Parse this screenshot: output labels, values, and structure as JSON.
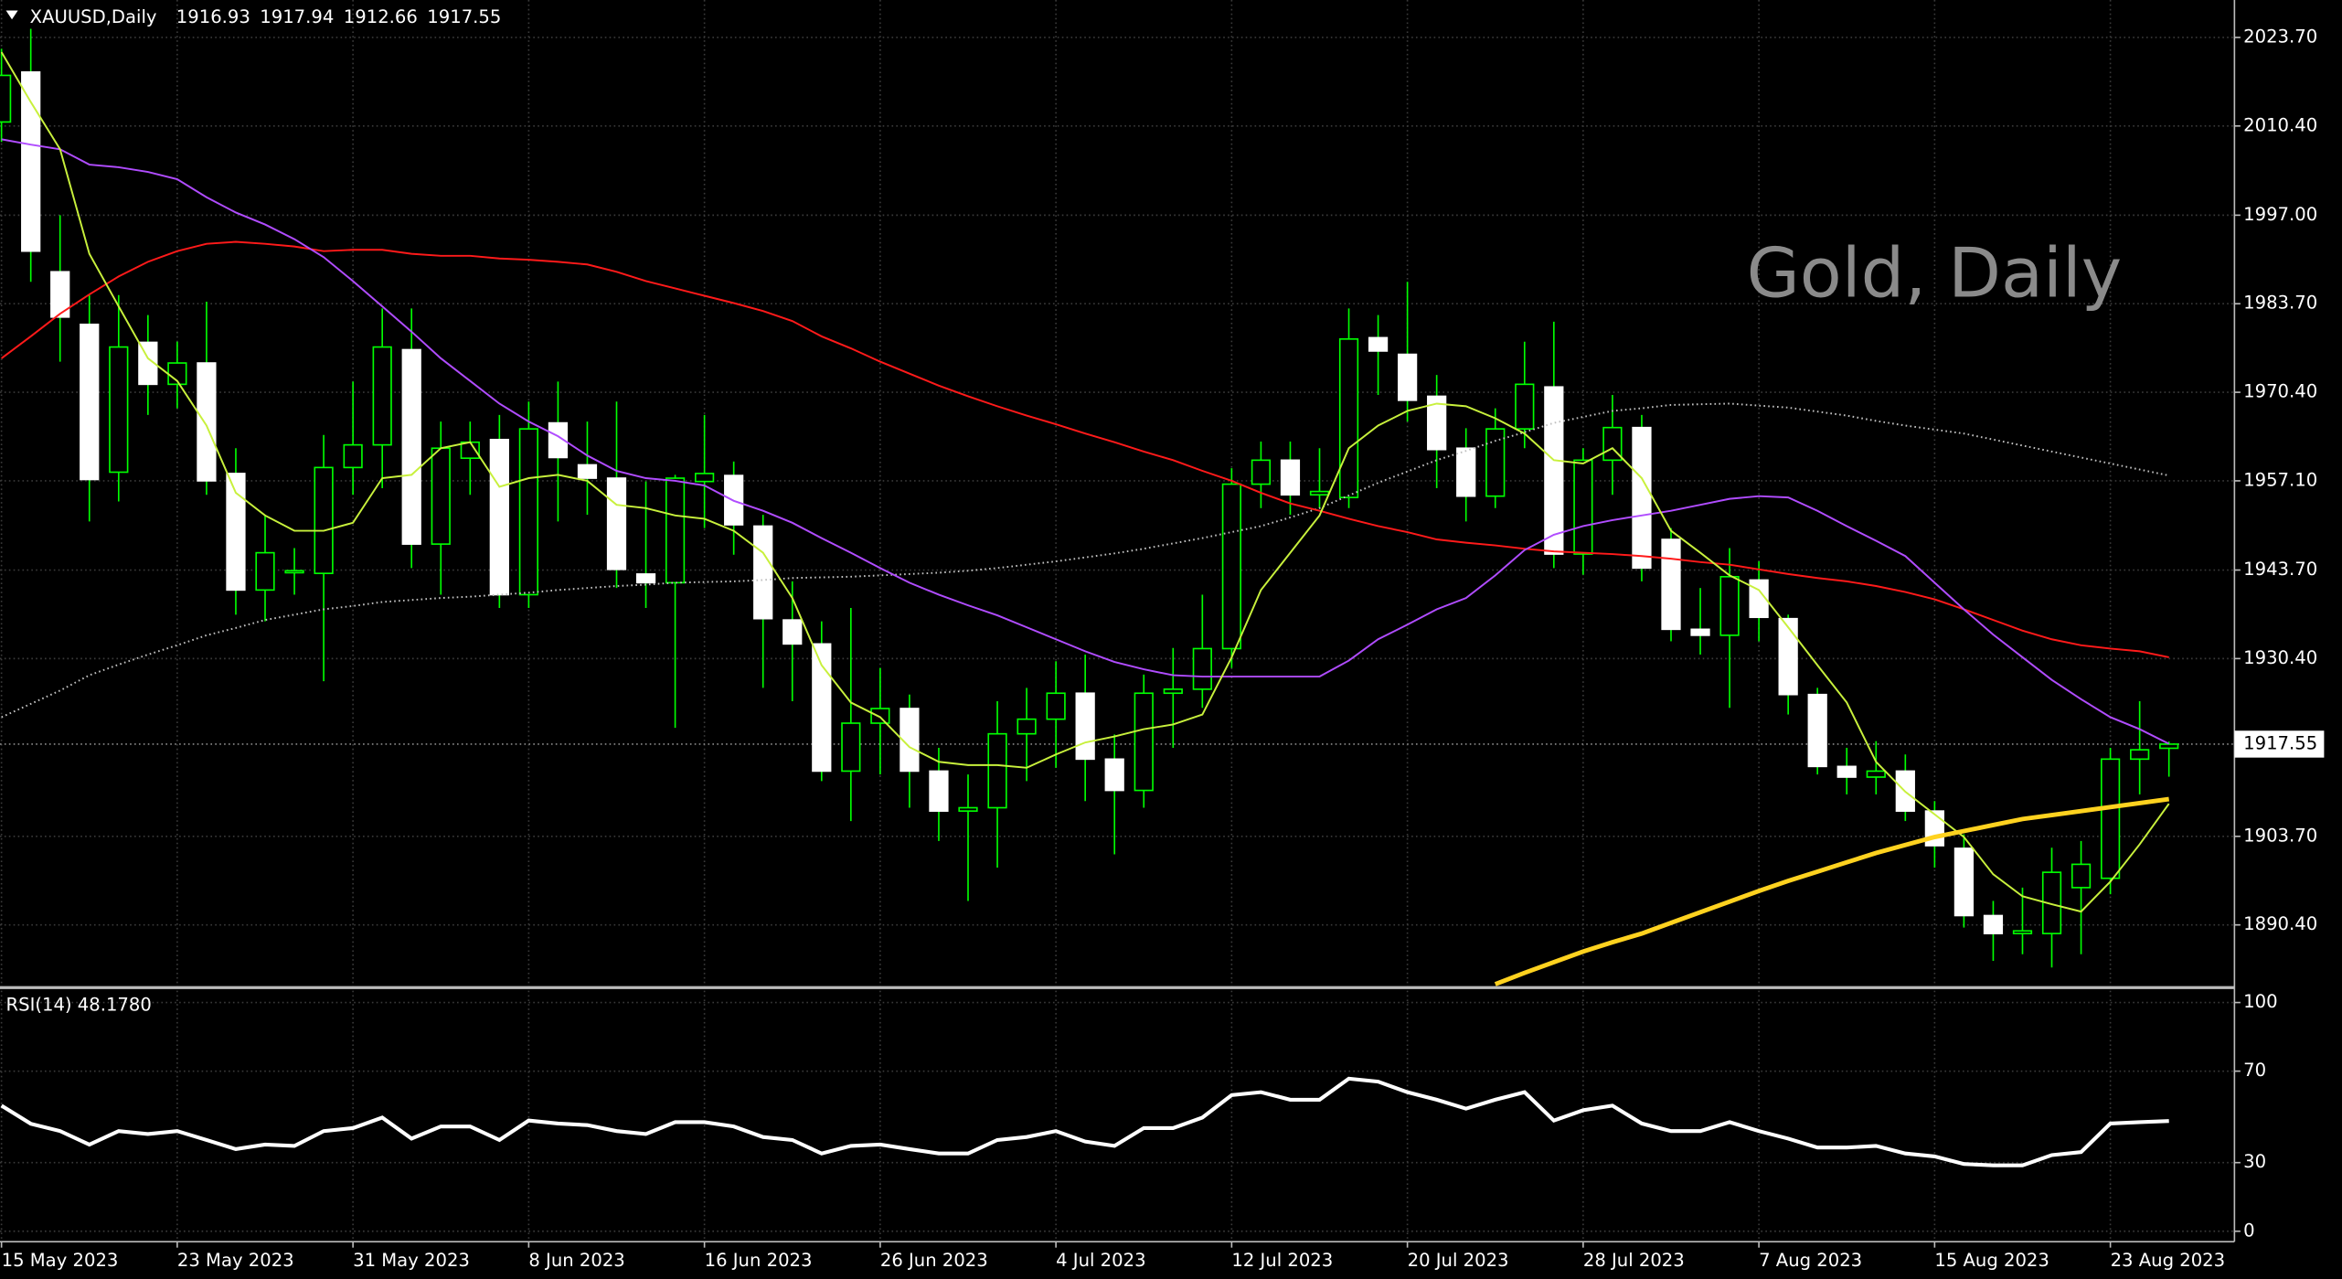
{
  "chart_data": [
    {
      "type": "candlestick",
      "title": "XAUUSD,Daily",
      "watermark": "Gold, Daily",
      "categories": [
        "15 May 2023",
        null,
        null,
        null,
        null,
        null,
        "23 May 2023",
        null,
        null,
        null,
        null,
        null,
        "31 May 2023",
        null,
        null,
        null,
        null,
        null,
        "8 Jun 2023",
        null,
        null,
        null,
        null,
        null,
        "16 Jun 2023",
        null,
        null,
        null,
        null,
        null,
        "26 Jun 2023",
        null,
        null,
        null,
        null,
        null,
        "4 Jul 2023",
        null,
        null,
        null,
        null,
        null,
        "12 Jul 2023",
        null,
        null,
        null,
        null,
        null,
        "20 Jul 2023",
        null,
        null,
        null,
        null,
        null,
        "28 Jul 2023",
        null,
        null,
        null,
        null,
        null,
        "7 Aug 2023",
        null,
        null,
        null,
        null,
        null,
        "15 Aug 2023",
        null,
        null,
        null,
        null,
        null,
        "23 Aug 2023",
        null,
        null
      ],
      "open": [
        2011,
        2018.5,
        1988.5,
        1980.6,
        1958.4,
        1977.9,
        1971.6,
        1974.8,
        1958.2,
        1940.7,
        1943.3,
        1943.2,
        1959.1,
        1962.5,
        1976.8,
        1947.6,
        1960.5,
        1963.3,
        1940,
        1965.8,
        1959.5,
        1957.5,
        1943.1,
        1941.8,
        1957,
        1957.9,
        1950.3,
        1936.2,
        1932.6,
        1913.5,
        1920.7,
        1922.9,
        1913.5,
        1907.5,
        1908,
        1919.1,
        1921.3,
        1925.2,
        1915.3,
        1910.6,
        1925.2,
        1925.8,
        1931.9,
        1956.6,
        1960.2,
        1955,
        1954.6,
        1978.6,
        1976.1,
        1969.8,
        1962,
        1954.8,
        1964.9,
        1971.2,
        1946.1,
        1960.2,
        1965.1,
        1948.3,
        1934.8,
        1933.9,
        1942.2,
        1936.4,
        1925,
        1914.2,
        1912.6,
        1913.5,
        1907.5,
        1901.9,
        1891.8,
        1889.1,
        1889.1,
        1896,
        1897.4,
        1915.3,
        1916.93
      ],
      "high": [
        2022,
        2025,
        1997,
        1985,
        1985,
        1982,
        1978,
        1984,
        1962,
        1952,
        1947,
        1964,
        1972,
        1983,
        1983,
        1966,
        1966,
        1967,
        1969,
        1972,
        1966,
        1969,
        1957,
        1958,
        1967,
        1960,
        1952,
        1942,
        1936,
        1938,
        1929,
        1925,
        1917,
        1913,
        1924,
        1926,
        1930,
        1931,
        1919,
        1928,
        1932,
        1940,
        1959,
        1963,
        1963,
        1962,
        1983,
        1982,
        1987,
        1973,
        1965,
        1968,
        1978,
        1981,
        1962,
        1970,
        1967,
        1950,
        1941,
        1947,
        1945,
        1937,
        1926,
        1917,
        1918,
        1916,
        1909,
        1904,
        1894,
        1896,
        1902,
        1903,
        1917,
        1924,
        1917.94
      ],
      "low": [
        2008,
        1987,
        1975,
        1951,
        1954,
        1967,
        1968,
        1955,
        1937,
        1936,
        1940,
        1927,
        1955,
        1956,
        1944,
        1940,
        1955,
        1938,
        1938,
        1951,
        1952,
        1941,
        1938,
        1920,
        1950,
        1946,
        1926,
        1924,
        1912,
        1906,
        1913,
        1908,
        1903,
        1894,
        1899,
        1912,
        1914,
        1909,
        1901,
        1908,
        1917,
        1923,
        1929,
        1953,
        1952,
        1953,
        1953,
        1970,
        1966,
        1956,
        1951,
        1953,
        1962,
        1944,
        1943,
        1955,
        1942,
        1933,
        1931,
        1923,
        1933,
        1922,
        1913,
        1910,
        1910,
        1906,
        1899,
        1890,
        1885,
        1886,
        1884,
        1886,
        1895,
        1910,
        1912.66
      ],
      "close": [
        2018,
        1991.6,
        1981.7,
        1957.3,
        1977.2,
        1971.6,
        1974.8,
        1957.1,
        1940.7,
        1946.3,
        1943.6,
        1959.1,
        1962.5,
        1977.2,
        1947.6,
        1962,
        1962.9,
        1940,
        1964.9,
        1960.6,
        1957.5,
        1943.8,
        1941.8,
        1957.5,
        1958.2,
        1950.5,
        1936.4,
        1932.6,
        1913.5,
        1920.7,
        1922.9,
        1913.5,
        1907.5,
        1908,
        1919.1,
        1921.3,
        1925.2,
        1915.3,
        1910.6,
        1925.2,
        1925.8,
        1931.9,
        1956.6,
        1960.2,
        1955,
        1955.5,
        1978.4,
        1976.6,
        1969.2,
        1961.8,
        1954.8,
        1964.9,
        1971.6,
        1946.1,
        1960.2,
        1965.1,
        1944,
        1934.8,
        1933.9,
        1942.7,
        1936.6,
        1925,
        1914.2,
        1912.6,
        1913.5,
        1907.5,
        1902.3,
        1891.8,
        1889.1,
        1889.5,
        1898.3,
        1899.5,
        1915.3,
        1916.7,
        1917.55
      ],
      "up_color": "#000000",
      "down_color": "#ffffff",
      "wick_color": "#00ff00",
      "overlays": [
        {
          "color": "#c0c0c0",
          "dotted": true,
          "values": [
            1921.6,
            1923.6,
            1925.6,
            1927.9,
            1929.5,
            1931,
            1932.4,
            1933.9,
            1935,
            1936.2,
            1937,
            1937.8,
            1938.3,
            1938.9,
            1939.2,
            1939.5,
            1939.7,
            1940,
            1940.3,
            1940.7,
            1941,
            1941.3,
            1941.5,
            1941.8,
            1941.9,
            1942,
            1942.2,
            1942.5,
            1942.6,
            1942.7,
            1942.9,
            1943.1,
            1943.3,
            1943.6,
            1944,
            1944.5,
            1945,
            1945.6,
            1946.2,
            1946.9,
            1947.7,
            1948.5,
            1949.4,
            1950.3,
            1951.6,
            1953,
            1954.9,
            1956.8,
            1958.5,
            1960.2,
            1961.6,
            1963.1,
            1964.4,
            1965.8,
            1966.7,
            1967.6,
            1968,
            1968.5,
            1968.6,
            1968.7,
            1968.4,
            1968.1,
            1967.5,
            1966.9,
            1966.1,
            1965.4,
            1964.8,
            1964.2,
            1963.3,
            1962.4,
            1961.5,
            1960.6,
            1959.7,
            1958.8,
            1957.9
          ]
        },
        {
          "color": "#ff1a1a",
          "values": [
            1975.5,
            1978.8,
            1982.2,
            1985.1,
            1987.8,
            1990,
            1991.6,
            1992.7,
            1993,
            1992.7,
            1992.3,
            1991.6,
            1991.8,
            1991.8,
            1991.2,
            1990.9,
            1990.9,
            1990.5,
            1990.3,
            1990,
            1989.6,
            1988.5,
            1987.1,
            1986,
            1984.9,
            1983.8,
            1982.6,
            1981.1,
            1978.8,
            1977,
            1975,
            1973.2,
            1971.4,
            1969.8,
            1968.3,
            1966.9,
            1965.6,
            1964.2,
            1962.9,
            1961.5,
            1960.2,
            1958.6,
            1957.1,
            1955.3,
            1953.7,
            1952.6,
            1951.4,
            1950.3,
            1949.4,
            1948.3,
            1947.8,
            1947.4,
            1946.9,
            1946.5,
            1946.3,
            1946.1,
            1945.8,
            1945.4,
            1944.9,
            1944.5,
            1943.8,
            1943.1,
            1942.5,
            1942,
            1941.3,
            1940.4,
            1939.3,
            1937.8,
            1936.2,
            1934.6,
            1933.3,
            1932.4,
            1931.9,
            1931.5,
            1930.6
          ]
        },
        {
          "color": "#b04cff",
          "values": [
            2008.4,
            2007.6,
            2006.9,
            2004.6,
            2004.2,
            2003.5,
            2002.4,
            1999.7,
            1997.4,
            1995.6,
            1993.4,
            1990.7,
            1987.1,
            1983.3,
            1979.5,
            1975.5,
            1972.1,
            1968.7,
            1966,
            1963.8,
            1960.9,
            1958.6,
            1957.5,
            1957.1,
            1956.4,
            1954.1,
            1952.6,
            1950.8,
            1948.5,
            1946.3,
            1944,
            1941.8,
            1940,
            1938.4,
            1936.9,
            1935.1,
            1933.3,
            1931.5,
            1929.9,
            1928.8,
            1927.9,
            1927.7,
            1927.7,
            1927.7,
            1927.7,
            1927.7,
            1930.1,
            1933.3,
            1935.5,
            1937.8,
            1939.5,
            1942.9,
            1946.7,
            1949,
            1950.3,
            1951.2,
            1951.9,
            1952.6,
            1953.5,
            1954.4,
            1954.8,
            1954.6,
            1952.6,
            1950.3,
            1948.1,
            1945.8,
            1941.8,
            1937.8,
            1934,
            1930.6,
            1927.2,
            1924.3,
            1921.6,
            1919.8,
            1917.6
          ]
        },
        {
          "color": "#c8f03c",
          "values": [
            2021.5,
            2014,
            2006.9,
            1991.2,
            1983.3,
            1975.5,
            1972.1,
            1965.4,
            1955.3,
            1951.9,
            1949.6,
            1949.6,
            1950.8,
            1957.5,
            1958,
            1962,
            1962.9,
            1956.2,
            1957.5,
            1958,
            1957.1,
            1953.5,
            1953,
            1951.9,
            1951.4,
            1949.6,
            1946.3,
            1939.5,
            1929.4,
            1923.8,
            1921.6,
            1917.1,
            1914.9,
            1914.4,
            1914.4,
            1914,
            1916,
            1917.8,
            1918.7,
            1919.8,
            1920.5,
            1922,
            1930.6,
            1940.7,
            1946.3,
            1951.9,
            1962,
            1965.4,
            1967.6,
            1968.7,
            1968.3,
            1966.5,
            1964.2,
            1960.2,
            1959.7,
            1962,
            1957.5,
            1949.6,
            1946.3,
            1942.9,
            1940.7,
            1935.1,
            1929.4,
            1923.8,
            1914.9,
            1910.4,
            1907,
            1903.6,
            1898,
            1894.7,
            1893.5,
            1892.4,
            1896.9,
            1902.5,
            1908.6
          ]
        },
        {
          "color": "#ffd21f",
          "bold": true,
          "values": [
            null,
            null,
            null,
            null,
            null,
            null,
            null,
            null,
            null,
            null,
            null,
            null,
            null,
            null,
            null,
            null,
            null,
            null,
            null,
            null,
            null,
            null,
            null,
            null,
            null,
            null,
            null,
            null,
            null,
            null,
            null,
            null,
            null,
            null,
            null,
            null,
            null,
            null,
            null,
            null,
            null,
            null,
            null,
            null,
            null,
            null,
            null,
            null,
            null,
            null,
            null,
            1881.5,
            1883.2,
            1884.8,
            1886.4,
            1887.8,
            1889.1,
            1890.7,
            1892.3,
            1893.9,
            1895.5,
            1897,
            1898.4,
            1899.8,
            1901.2,
            1902.4,
            1903.6,
            1904.5,
            1905.4,
            1906.3,
            1906.9,
            1907.5,
            1908.1,
            1908.7,
            1909.3
          ]
        }
      ],
      "ylim": [
        1881.2,
        2028.2
      ],
      "yticks": [
        {
          "value": 2023.7,
          "label": "2023.70"
        },
        {
          "value": 2010.4,
          "label": "2010.40"
        },
        {
          "value": 1997,
          "label": "1997.00"
        },
        {
          "value": 1983.7,
          "label": "1983.70"
        },
        {
          "value": 1970.4,
          "label": "1970.40"
        },
        {
          "value": 1957.1,
          "label": "1957.10"
        },
        {
          "value": 1943.7,
          "label": "1943.70"
        },
        {
          "value": 1930.4,
          "label": "1930.40"
        },
        {
          "value": 1903.7,
          "label": "1903.70"
        },
        {
          "value": 1890.4,
          "label": "1890.40"
        }
      ],
      "grid": true
    },
    {
      "type": "line",
      "title": "RSI(14) 48.1780",
      "color": "#ffffff",
      "values": [
        54.9,
        47,
        43.8,
        37.9,
        43.8,
        42.5,
        43.8,
        39.9,
        35.9,
        37.9,
        37.3,
        43.8,
        45.1,
        49.7,
        40.5,
        45.8,
        45.8,
        39.9,
        48.4,
        47.1,
        46.4,
        43.8,
        42.5,
        47.7,
        47.7,
        45.8,
        41.2,
        39.9,
        34,
        37.3,
        37.9,
        35.9,
        34,
        34,
        39.9,
        41.2,
        43.8,
        39.2,
        37.3,
        45.1,
        45.1,
        49.7,
        59.5,
        60.8,
        57.5,
        57.5,
        66.7,
        65.4,
        60.8,
        57.5,
        53.6,
        57.5,
        60.8,
        48.4,
        52.9,
        54.9,
        47.1,
        43.8,
        43.8,
        47.7,
        43.8,
        40.5,
        36.6,
        36.6,
        37.3,
        34,
        32.7,
        29.4,
        28.8,
        28.8,
        33.3,
        34.6,
        47.1,
        47.7,
        48.178
      ],
      "ylim": [
        -3.9,
        105.2
      ],
      "yticks": [
        100,
        70,
        30,
        0
      ],
      "grid": true
    }
  ]
}
